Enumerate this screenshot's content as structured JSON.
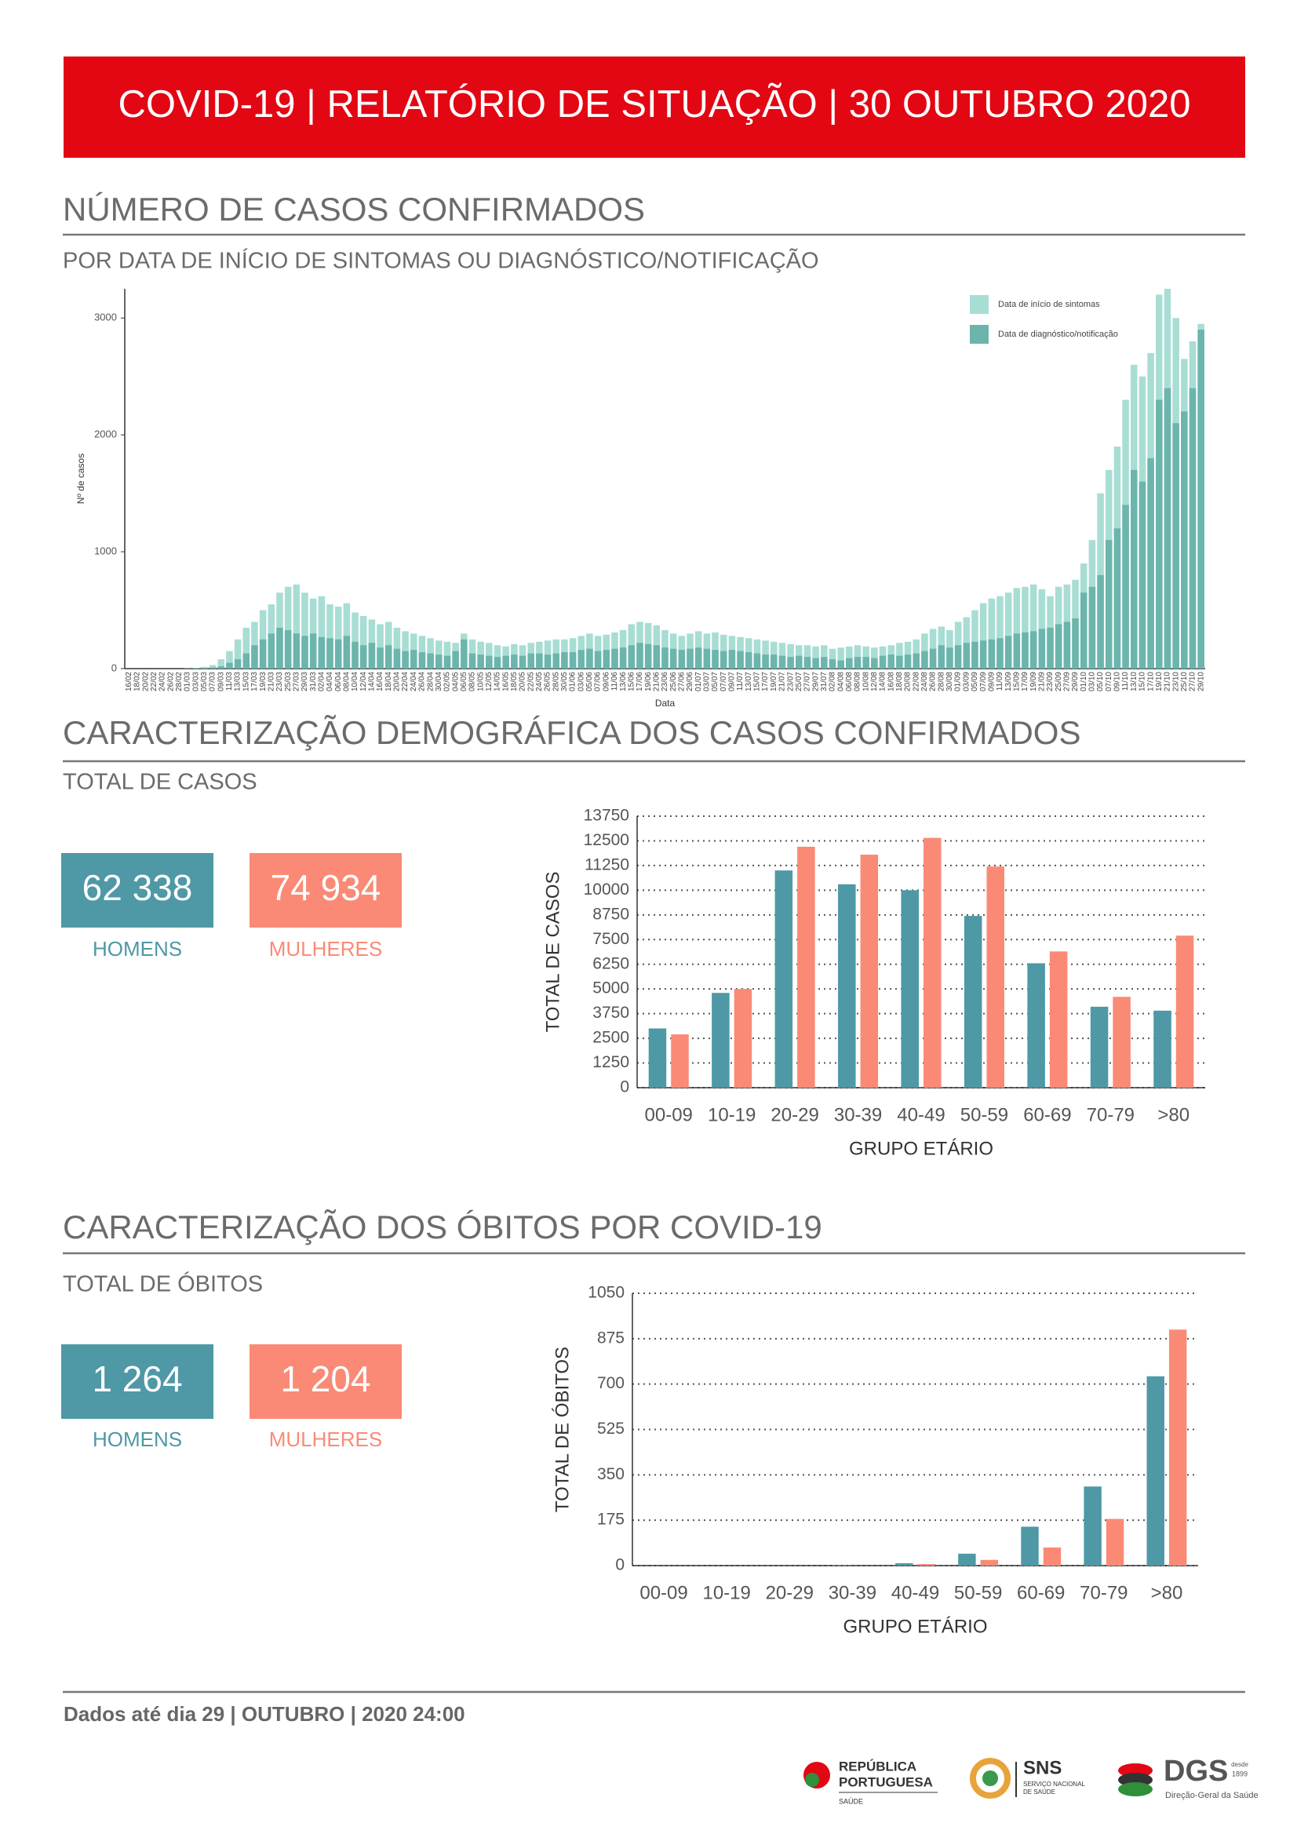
{
  "header": {
    "title": "COVID-19 | RELATÓRIO DE SITUAÇÃO | 30 OUTUBRO 2020"
  },
  "sections": [
    {
      "title": "NÚMERO DE CASOS CONFIRMADOS",
      "subtitle": "POR DATA DE INÍCIO DE SINTOMAS OU DIAGNÓSTICO/NOTIFICAÇÃO"
    },
    {
      "title": "CARACTERIZAÇÃO DEMOGRÁFICA DOS CASOS CONFIRMADOS",
      "subtitle": "TOTAL DE CASOS",
      "totals": [
        {
          "value": "62 338",
          "label": "HOMENS"
        },
        {
          "value": "74 934",
          "label": "MULHERES"
        }
      ]
    },
    {
      "title": "CARACTERIZAÇÃO DOS ÓBITOS POR COVID-19",
      "subtitle": "TOTAL DE ÓBITOS",
      "totals": [
        {
          "value": "1 264",
          "label": "HOMENS"
        },
        {
          "value": "1 204",
          "label": "MULHERES"
        }
      ]
    }
  ],
  "footer": {
    "text": "Dados até dia 29 | OUTUBRO | 2020 24:00",
    "logos": [
      "REPÚBLICA",
      "PORTUGUESA",
      "SAÚDE",
      "SNS",
      "SERVIÇO NACIONAL",
      "DE SAÚDE",
      "DGS",
      "desde",
      "1899",
      "Direção-Geral da Saúde"
    ]
  },
  "chart_data": [
    {
      "type": "bar",
      "barmode": "overlay",
      "x_label": "Data",
      "y_label": "Nº de casos",
      "legend": "upper right",
      "grid": false,
      "categories": [
        "16/02",
        "18/02",
        "20/02",
        "22/02",
        "24/02",
        "26/02",
        "28/02",
        "01/03",
        "03/03",
        "05/03",
        "07/03",
        "09/03",
        "11/03",
        "13/03",
        "15/03",
        "17/03",
        "19/03",
        "21/03",
        "23/03",
        "25/03",
        "27/03",
        "29/03",
        "31/03",
        "02/04",
        "04/04",
        "06/04",
        "08/04",
        "10/04",
        "12/04",
        "14/04",
        "16/04",
        "18/04",
        "20/04",
        "22/04",
        "24/04",
        "26/04",
        "28/04",
        "30/04",
        "02/05",
        "04/05",
        "06/05",
        "08/05",
        "10/05",
        "12/05",
        "14/05",
        "16/05",
        "18/05",
        "20/05",
        "22/05",
        "24/05",
        "26/05",
        "28/05",
        "30/05",
        "01/06",
        "03/06",
        "05/06",
        "07/06",
        "09/06",
        "11/06",
        "13/06",
        "15/06",
        "17/06",
        "19/06",
        "21/06",
        "23/06",
        "25/06",
        "27/06",
        "29/06",
        "01/07",
        "03/07",
        "05/07",
        "07/07",
        "09/07",
        "11/07",
        "13/07",
        "15/07",
        "17/07",
        "19/07",
        "21/07",
        "23/07",
        "25/07",
        "27/07",
        "29/07",
        "31/07",
        "02/08",
        "04/08",
        "06/08",
        "08/08",
        "10/08",
        "12/08",
        "14/08",
        "16/08",
        "18/08",
        "20/08",
        "22/08",
        "24/08",
        "26/08",
        "28/08",
        "30/08",
        "01/09",
        "03/09",
        "05/09",
        "07/09",
        "09/09",
        "11/09",
        "13/09",
        "15/09",
        "17/09",
        "19/09",
        "21/09",
        "23/09",
        "25/09",
        "27/09",
        "29/09",
        "01/10",
        "03/10",
        "05/10",
        "07/10",
        "09/10",
        "11/10",
        "13/10",
        "15/10",
        "17/10",
        "19/10",
        "21/10",
        "23/10",
        "25/10",
        "27/10",
        "29/10"
      ],
      "series": [
        {
          "name": "Data de início de sintomas",
          "color": "#a8ddd4",
          "values": [
            0,
            0,
            0,
            0,
            0,
            0,
            0,
            2,
            5,
            15,
            30,
            80,
            150,
            250,
            350,
            400,
            500,
            550,
            650,
            700,
            720,
            650,
            600,
            620,
            550,
            530,
            560,
            480,
            450,
            420,
            380,
            400,
            350,
            320,
            300,
            280,
            260,
            240,
            230,
            220,
            300,
            250,
            230,
            220,
            200,
            190,
            210,
            200,
            220,
            230,
            240,
            250,
            250,
            260,
            280,
            300,
            280,
            290,
            310,
            330,
            380,
            400,
            390,
            370,
            330,
            300,
            280,
            300,
            320,
            300,
            310,
            290,
            280,
            270,
            260,
            250,
            240,
            230,
            220,
            210,
            200,
            200,
            190,
            200,
            170,
            180,
            190,
            200,
            190,
            180,
            190,
            200,
            220,
            230,
            250,
            300,
            340,
            360,
            330,
            400,
            440,
            500,
            560,
            600,
            620,
            650,
            690,
            700,
            720,
            680,
            620,
            700,
            720,
            760,
            900,
            1100,
            1500,
            1700,
            1900,
            2300,
            2600,
            2500,
            2700,
            3200,
            3250,
            3000,
            2650,
            2800,
            2950
          ]
        },
        {
          "name": "Data de diagnóstico/notificação",
          "color": "#6bb5ac",
          "values": [
            0,
            0,
            0,
            0,
            0,
            0,
            0,
            0,
            2,
            5,
            10,
            20,
            50,
            80,
            130,
            200,
            250,
            300,
            350,
            330,
            300,
            280,
            300,
            270,
            260,
            250,
            280,
            230,
            200,
            220,
            180,
            200,
            170,
            150,
            160,
            140,
            130,
            120,
            110,
            150,
            250,
            130,
            120,
            110,
            100,
            110,
            120,
            110,
            130,
            130,
            120,
            130,
            140,
            140,
            160,
            170,
            150,
            160,
            170,
            180,
            200,
            220,
            210,
            200,
            180,
            170,
            160,
            170,
            180,
            170,
            160,
            150,
            160,
            150,
            140,
            130,
            120,
            120,
            110,
            100,
            110,
            100,
            90,
            100,
            80,
            70,
            90,
            100,
            100,
            90,
            110,
            120,
            110,
            120,
            130,
            150,
            170,
            200,
            180,
            200,
            220,
            230,
            240,
            250,
            260,
            280,
            300,
            310,
            320,
            340,
            350,
            380,
            400,
            430,
            650,
            700,
            800,
            1100,
            1200,
            1400,
            1700,
            1600,
            1800,
            2300,
            2400,
            2100,
            2200,
            2400,
            2900
          ]
        }
      ],
      "ylim": [
        0,
        3250
      ],
      "yticks": [
        0,
        1000,
        2000,
        3000
      ]
    },
    {
      "type": "bar",
      "barmode": "group",
      "x_label": "GRUPO ETÁRIO",
      "y_label": "TOTAL DE CASOS",
      "grid": true,
      "grid_style": "dotted",
      "categories": [
        "00-09",
        "10-19",
        "20-29",
        "30-39",
        "40-49",
        "50-59",
        "60-69",
        "70-79",
        ">80"
      ],
      "series": [
        {
          "name": "HOMENS",
          "color": "#4f98a6",
          "values": [
            3000,
            4800,
            11000,
            10300,
            10000,
            8700,
            6300,
            4100,
            3900
          ]
        },
        {
          "name": "MULHERES",
          "color": "#fa8a76",
          "values": [
            2700,
            5000,
            12200,
            11800,
            12650,
            11200,
            6900,
            4600,
            7700
          ]
        }
      ],
      "ylim": [
        0,
        13750
      ],
      "yticks": [
        0,
        1250,
        2500,
        3750,
        5000,
        6250,
        7500,
        8750,
        10000,
        11250,
        12500,
        13750
      ]
    },
    {
      "type": "bar",
      "barmode": "group",
      "x_label": "GRUPO ETÁRIO",
      "y_label": "TOTAL DE ÓBITOS",
      "grid": true,
      "grid_style": "dotted",
      "categories": [
        "00-09",
        "10-19",
        "20-29",
        "30-39",
        "40-49",
        "50-59",
        "60-69",
        "70-79",
        ">80"
      ],
      "series": [
        {
          "name": "HOMENS",
          "color": "#4f98a6",
          "values": [
            0,
            0,
            0,
            1,
            9,
            46,
            150,
            305,
            730
          ]
        },
        {
          "name": "MULHERES",
          "color": "#fa8a76",
          "values": [
            0,
            0,
            0,
            0,
            6,
            22,
            70,
            180,
            910
          ]
        }
      ],
      "ylim": [
        0,
        1050
      ],
      "yticks": [
        0,
        175,
        350,
        525,
        700,
        875,
        1050
      ]
    }
  ]
}
